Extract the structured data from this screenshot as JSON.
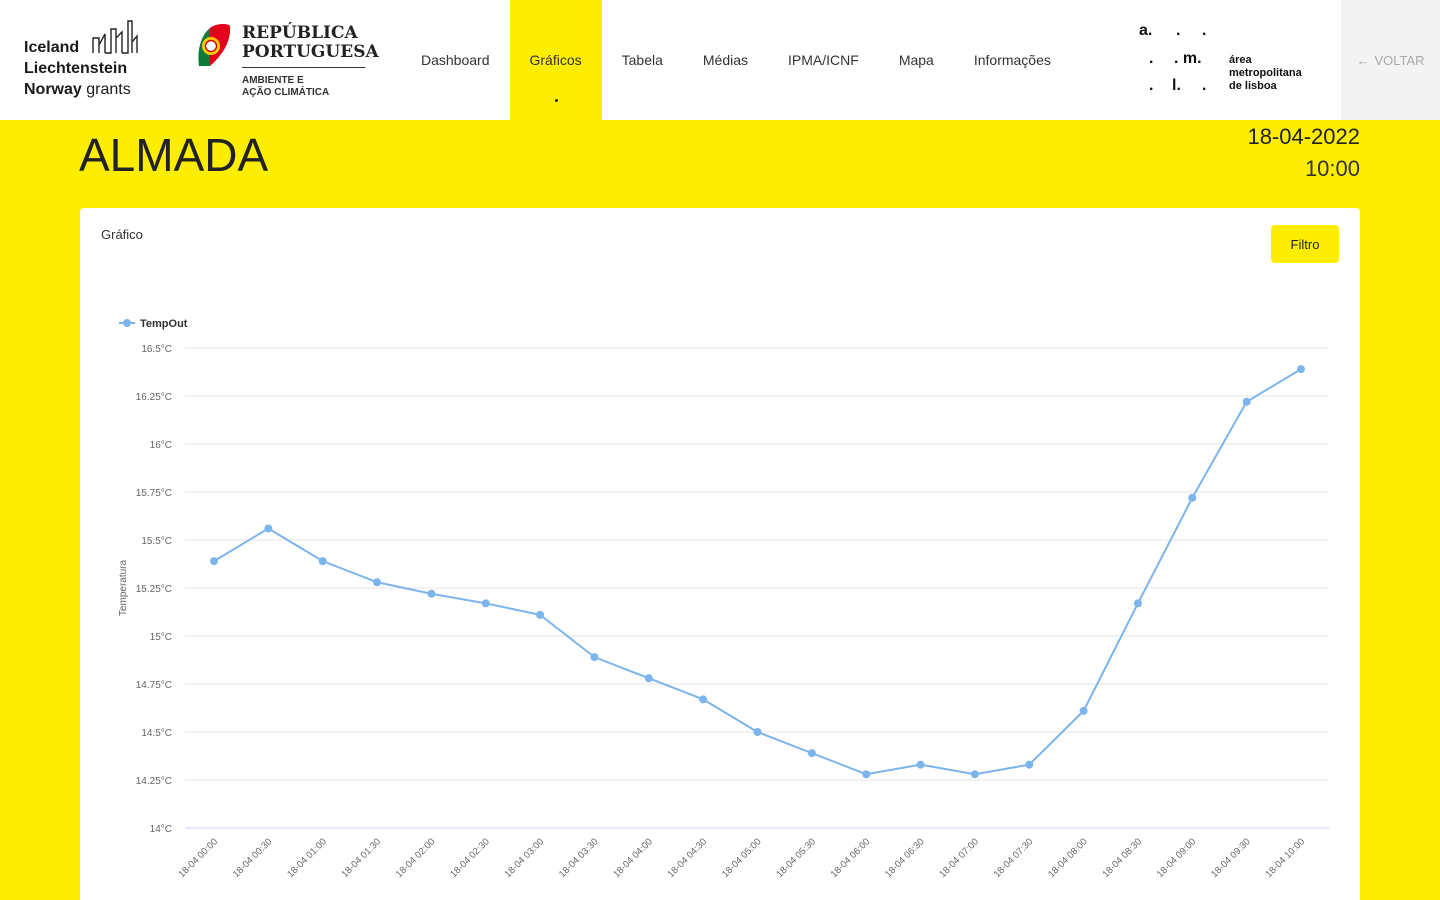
{
  "brand": {
    "eea_line1": "Iceland",
    "eea_line2": "Liechtenstein",
    "eea_line3a": "Norway",
    "eea_line3b": "grants",
    "rp_line1": "REPÚBLICA",
    "rp_line2": "PORTUGUESA",
    "rp_sub1": "AMBIENTE E",
    "rp_sub2": "AÇÃO CLIMÁTICA",
    "aml_letters": [
      "a.",
      ".",
      ".",
      ".",
      ". m.",
      ".",
      "l.",
      "."
    ],
    "aml_text1": "área",
    "aml_text2": "metropolitana",
    "aml_text3": "de lisboa"
  },
  "nav": {
    "items": [
      {
        "label": "Dashboard"
      },
      {
        "label": "Gráficos"
      },
      {
        "label": "Tabela"
      },
      {
        "label": "Médias"
      },
      {
        "label": "IPMA/ICNF"
      },
      {
        "label": "Mapa"
      },
      {
        "label": "Informações"
      }
    ],
    "active_index": 1,
    "back_label": "VOLTAR",
    "back_icon": "arrow-left-icon"
  },
  "page": {
    "city": "ALMADA",
    "date": "18-04-2022",
    "time": "10:00"
  },
  "card": {
    "title": "Gráfico",
    "filter_label": "Filtro"
  },
  "colors": {
    "accent": "#fdee00",
    "series": "#7cb5ec"
  },
  "chart_data": {
    "type": "line",
    "title": "",
    "xlabel": "",
    "ylabel": "Temperatura",
    "legend_position": "top-left",
    "grid": true,
    "ylim": [
      14,
      16.5
    ],
    "yticks": [
      "14°C",
      "14.25°C",
      "14.5°C",
      "14.75°C",
      "15°C",
      "15.25°C",
      "15.5°C",
      "15.75°C",
      "16°C",
      "16.25°C",
      "16.5°C"
    ],
    "categories": [
      "18-04 00:00",
      "18-04 00:30",
      "18-04 01:00",
      "18-04 01:30",
      "18-04 02:00",
      "18-04 02:30",
      "18-04 03:00",
      "18-04 03:30",
      "18-04 04:00",
      "18-04 04:30",
      "18-04 05:00",
      "18-04 05:30",
      "18-04 06:00",
      "18-04 06:30",
      "18-04 07:00",
      "18-04 07:30",
      "18-04 08:00",
      "18-04 08:30",
      "18-04 09:00",
      "18-04 09:30",
      "18-04 10:00"
    ],
    "series": [
      {
        "name": "TempOut",
        "values": [
          15.39,
          15.56,
          15.39,
          15.28,
          15.22,
          15.17,
          15.11,
          14.89,
          14.78,
          14.67,
          14.5,
          14.39,
          14.28,
          14.33,
          14.28,
          14.33,
          14.61,
          15.17,
          15.72,
          16.22,
          16.39
        ]
      }
    ]
  }
}
